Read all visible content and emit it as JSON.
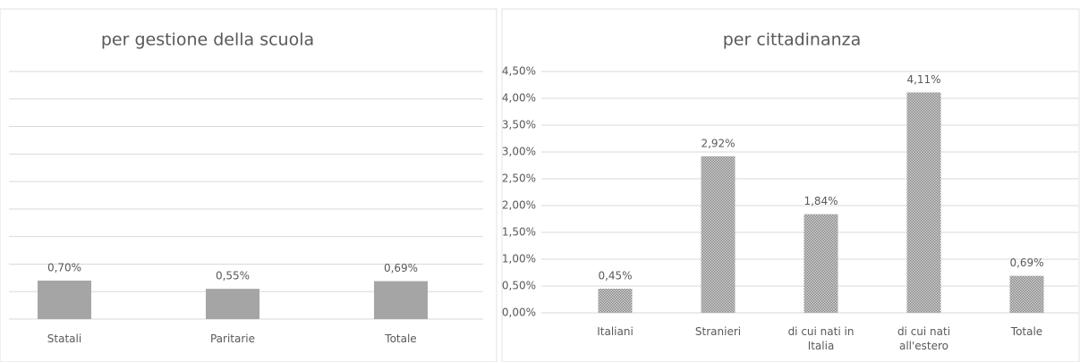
{
  "chart_data": [
    {
      "type": "bar",
      "title": "per gestione della scuola",
      "categories": [
        "Statali",
        "Paritarie",
        "Totale"
      ],
      "values": [
        0.7,
        0.55,
        0.69
      ],
      "value_labels": [
        "0,70%",
        "0,55%",
        "0,69%"
      ],
      "color": "#a5a5a5",
      "pattern": "solid",
      "ylim": [
        0,
        4.5
      ],
      "yticks": [
        0,
        0.5,
        1,
        1.5,
        2,
        2.5,
        3,
        3.5,
        4,
        4.5
      ],
      "show_tick_labels": false,
      "grid": true
    },
    {
      "type": "bar",
      "title": "per cittadinanza",
      "categories": [
        "Italiani",
        "Stranieri",
        "di cui nati in Italia",
        "di cui nati all'estero",
        "Totale"
      ],
      "values": [
        0.45,
        2.92,
        1.84,
        4.11,
        0.69
      ],
      "value_labels": [
        "0,45%",
        "2,92%",
        "1,84%",
        "4,11%",
        "0,69%"
      ],
      "color": "#a5a5a5",
      "pattern": "dots",
      "ylim": [
        0,
        4.5
      ],
      "yticks": [
        {
          "value": 0,
          "label": "0,00%"
        },
        {
          "value": 0.5,
          "label": "0,50%"
        },
        {
          "value": 1,
          "label": "1,00%"
        },
        {
          "value": 1.5,
          "label": "1,50%"
        },
        {
          "value": 2,
          "label": "2,00%"
        },
        {
          "value": 2.5,
          "label": "2,50%"
        },
        {
          "value": 3,
          "label": "3,00%"
        },
        {
          "value": 3.5,
          "label": "3,50%"
        },
        {
          "value": 4,
          "label": "4,00%"
        },
        {
          "value": 4.5,
          "label": "4,50%"
        }
      ],
      "show_tick_labels": true,
      "grid": true
    }
  ]
}
